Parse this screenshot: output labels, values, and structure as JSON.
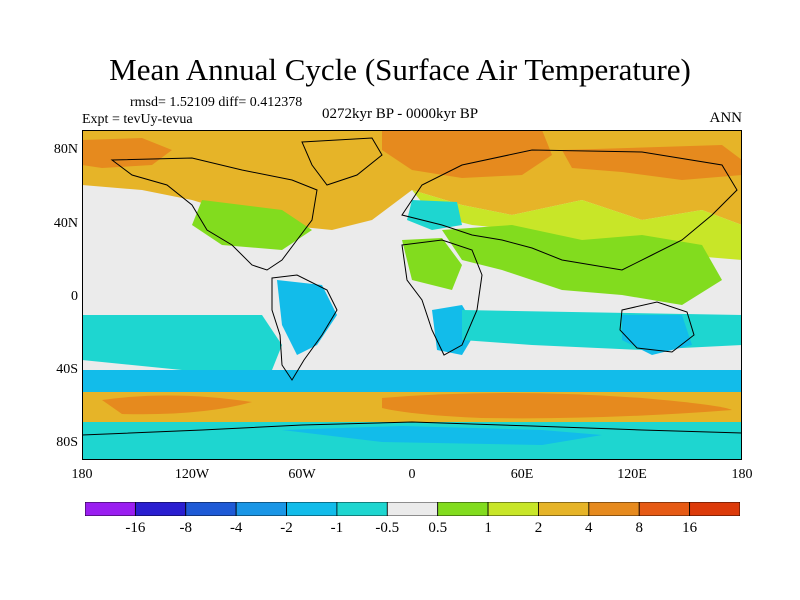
{
  "title": "Mean Annual Cycle (Surface Air Temperature)",
  "stats": "rmsd= 1.52109 diff= 0.412378",
  "experiment": "Expt = tevUy-tevua",
  "period": "0272kyr BP - 0000kyr BP",
  "season": "ANN",
  "lat_labels": [
    "80N",
    "40N",
    "0",
    "40S",
    "80S"
  ],
  "lon_labels": [
    "180",
    "120W",
    "60W",
    "0",
    "60E",
    "120E",
    "180"
  ],
  "colorbar": {
    "levels": [
      "-16",
      "-8",
      "-4",
      "-2",
      "-1",
      "-0.5",
      "0.5",
      "1",
      "2",
      "4",
      "8",
      "16"
    ],
    "colors": [
      "#9a1ef0",
      "#2a1ed0",
      "#1e5ad6",
      "#1a96e6",
      "#12bcea",
      "#1ed6d0",
      "#ebebeb",
      "#82dc1e",
      "#c8e628",
      "#e6b428",
      "#e68a1e",
      "#e65a14",
      "#dc3a0a"
    ]
  }
}
